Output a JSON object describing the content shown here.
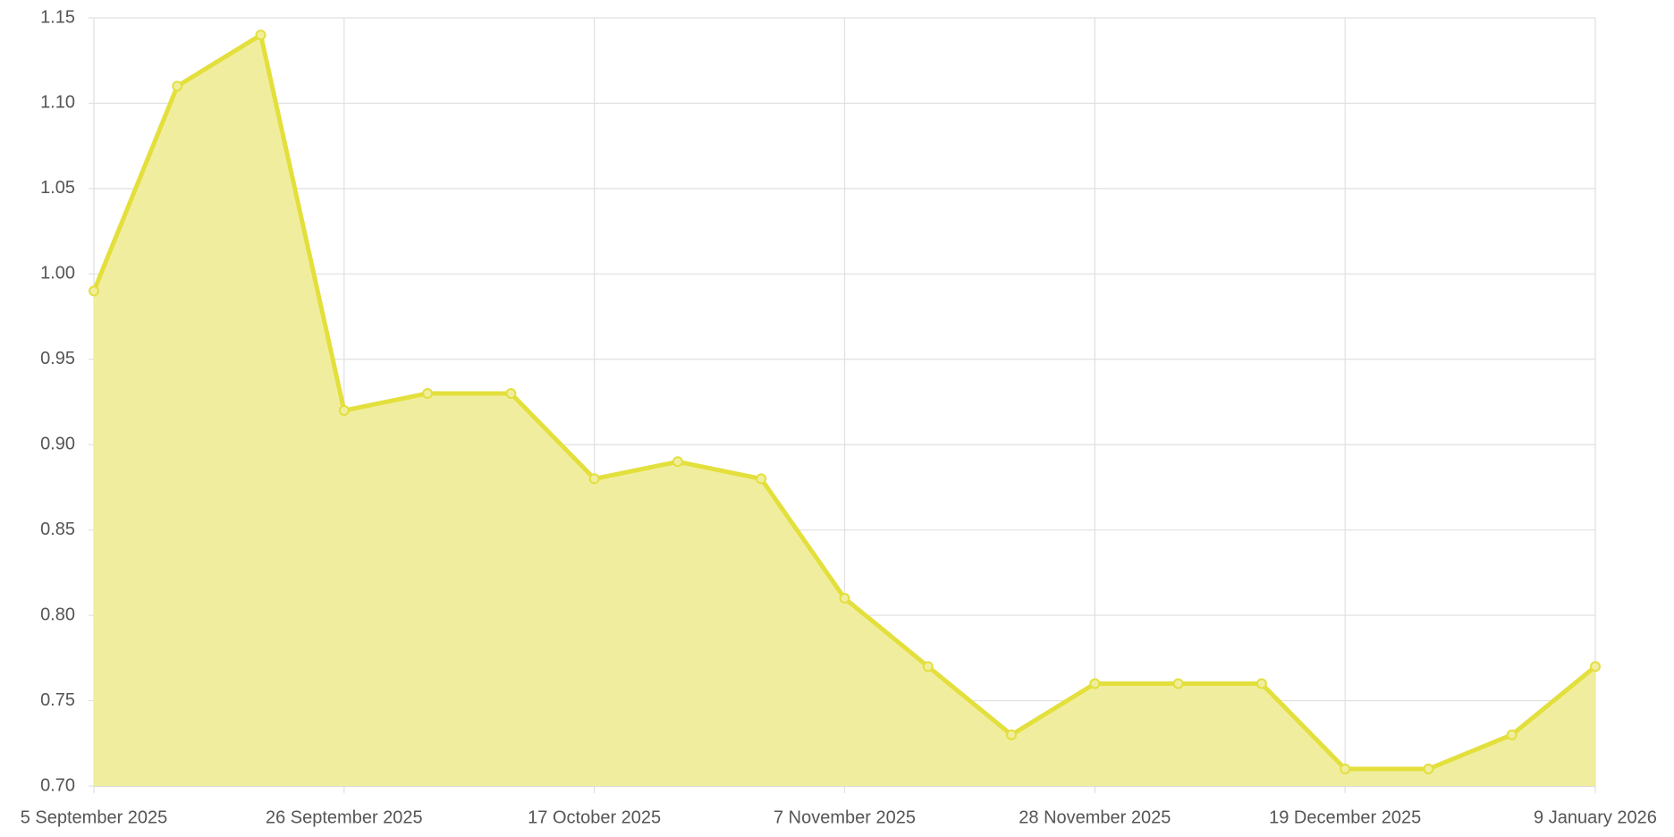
{
  "chart_data": {
    "type": "area",
    "categories": [
      "5 September 2025",
      null,
      null,
      "26 September 2025",
      null,
      null,
      "17 October 2025",
      null,
      null,
      "7 November 2025",
      null,
      null,
      "28 November 2025",
      null,
      null,
      "19 December 2025",
      null,
      null,
      "9 January 2026"
    ],
    "series": [
      {
        "color": "#e3df3c",
        "fill": "#f0ee9e",
        "values": [
          0.99,
          1.11,
          1.14,
          0.92,
          0.93,
          0.93,
          0.88,
          0.89,
          0.88,
          0.81,
          0.77,
          0.73,
          0.76,
          0.76,
          0.76,
          0.71,
          0.71,
          0.73,
          0.77
        ]
      }
    ],
    "ylim": [
      0.7,
      1.15
    ],
    "yticks": [
      {
        "value": 0.7,
        "label": "0.70"
      },
      0.75,
      {
        "value": 0.8,
        "label": "0.80"
      },
      0.85,
      {
        "value": 0.9,
        "label": "0.90"
      },
      0.95,
      {
        "value": 1.0,
        "label": "1.00"
      },
      1.05,
      {
        "value": 1.1,
        "label": "1.10"
      },
      1.15
    ],
    "grid": true
  }
}
